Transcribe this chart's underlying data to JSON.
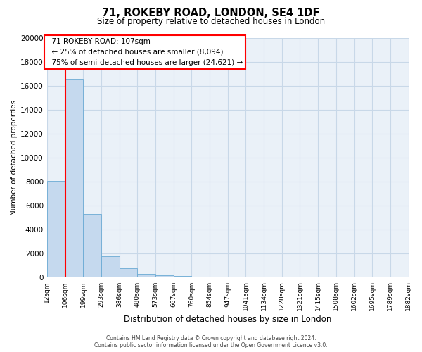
{
  "title": "71, ROKEBY ROAD, LONDON, SE4 1DF",
  "subtitle": "Size of property relative to detached houses in London",
  "xlabel": "Distribution of detached houses by size in London",
  "ylabel": "Number of detached properties",
  "bar_color": "#c5d9ee",
  "bar_edge_color": "#6aaad4",
  "bg_color": "#eaf1f8",
  "grid_color": "#c8d8e8",
  "red_line_x": 107,
  "annotation_title": "71 ROKEBY ROAD: 107sqm",
  "annotation_line1": "← 25% of detached houses are smaller (8,094)",
  "annotation_line2": "75% of semi-detached houses are larger (24,621) →",
  "bin_edges": [
    12,
    106,
    199,
    293,
    386,
    480,
    573,
    667,
    760,
    854,
    947,
    1041,
    1134,
    1228,
    1321,
    1415,
    1508,
    1602,
    1695,
    1789,
    1882
  ],
  "bar_heights": [
    8094,
    16600,
    5300,
    1800,
    800,
    300,
    200,
    150,
    100,
    50,
    0,
    0,
    0,
    0,
    0,
    0,
    0,
    0,
    0,
    0
  ],
  "ylim": [
    0,
    20000
  ],
  "yticks": [
    0,
    2000,
    4000,
    6000,
    8000,
    10000,
    12000,
    14000,
    16000,
    18000,
    20000
  ],
  "footnote1": "Contains HM Land Registry data © Crown copyright and database right 2024.",
  "footnote2": "Contains public sector information licensed under the Open Government Licence v3.0."
}
